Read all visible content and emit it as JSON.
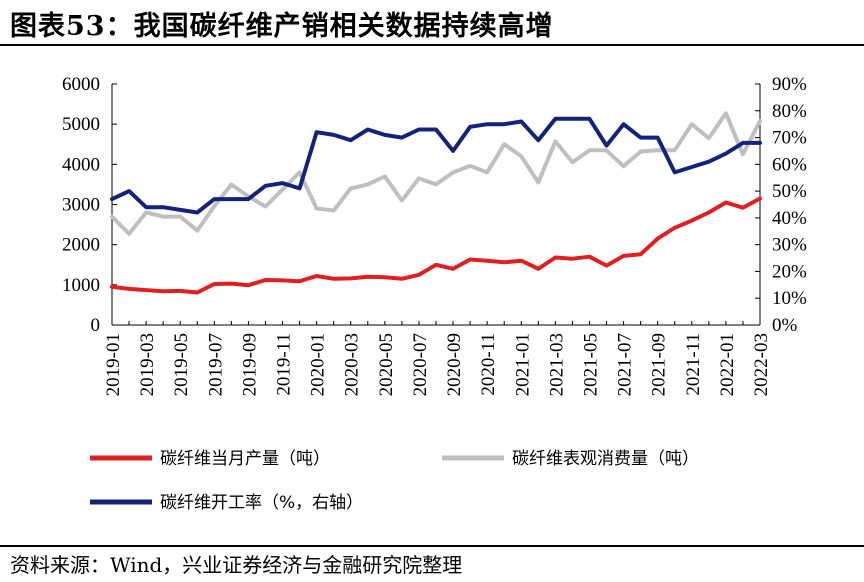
{
  "title": "图表53：我国碳纤维产销相关数据持续高增",
  "source": "资料来源：Wind，兴业证券经济与金融研究院整理",
  "chart_data": {
    "type": "line",
    "x": [
      "2019-01",
      "2019-02",
      "2019-03",
      "2019-04",
      "2019-05",
      "2019-06",
      "2019-07",
      "2019-08",
      "2019-09",
      "2019-10",
      "2019-11",
      "2019-12",
      "2020-01",
      "2020-02",
      "2020-03",
      "2020-04",
      "2020-05",
      "2020-06",
      "2020-07",
      "2020-08",
      "2020-09",
      "2020-10",
      "2020-11",
      "2020-12",
      "2021-01",
      "2021-02",
      "2021-03",
      "2021-04",
      "2021-05",
      "2021-06",
      "2021-07",
      "2021-08",
      "2021-09",
      "2021-10",
      "2021-11",
      "2021-12",
      "2022-01",
      "2022-02",
      "2022-03"
    ],
    "x_tick_labels": [
      "2019-01",
      "2019-03",
      "2019-05",
      "2019-07",
      "2019-09",
      "2019-11",
      "2020-01",
      "2020-03",
      "2020-05",
      "2020-07",
      "2020-09",
      "2020-11",
      "2021-01",
      "2021-03",
      "2021-05",
      "2021-07",
      "2021-09",
      "2021-11",
      "2022-01",
      "2022-03"
    ],
    "y_left": {
      "ylim": [
        0,
        6000
      ],
      "ticks": [
        "0",
        "1000",
        "2000",
        "3000",
        "4000",
        "5000",
        "6000"
      ]
    },
    "y_right": {
      "ylim": [
        0,
        90
      ],
      "ticks": [
        "0%",
        "10%",
        "20%",
        "30%",
        "40%",
        "50%",
        "60%",
        "70%",
        "80%",
        "90%"
      ]
    },
    "series": [
      {
        "name": "碳纤维当月产量（吨）",
        "axis": "left",
        "color": "#e02020",
        "values": [
          950,
          900,
          870,
          840,
          850,
          810,
          1020,
          1030,
          990,
          1120,
          1110,
          1090,
          1220,
          1150,
          1160,
          1200,
          1190,
          1150,
          1250,
          1500,
          1400,
          1630,
          1600,
          1560,
          1600,
          1400,
          1680,
          1650,
          1700,
          1480,
          1720,
          1760,
          2150,
          2420,
          2600,
          2800,
          3050,
          2920,
          3150
        ]
      },
      {
        "name": "碳纤维表观消费量（吨）",
        "axis": "left",
        "color": "#bfbfbf",
        "values": [
          2700,
          2270,
          2800,
          2700,
          2700,
          2350,
          2960,
          3500,
          3200,
          2950,
          3370,
          3800,
          2900,
          2850,
          3400,
          3500,
          3700,
          3100,
          3650,
          3500,
          3800,
          3960,
          3800,
          4500,
          4200,
          3550,
          4570,
          4050,
          4350,
          4350,
          3950,
          4320,
          4350,
          4350,
          5000,
          4650,
          5270,
          4250,
          5080
        ]
      },
      {
        "name": "碳纤维开工率（%，右轴）",
        "axis": "right",
        "color": "#14237a",
        "values": [
          47,
          50,
          44,
          44,
          43,
          42,
          47,
          47,
          47,
          52,
          53,
          51,
          72,
          71,
          69,
          73,
          71,
          70,
          73,
          73,
          65,
          74,
          75,
          75,
          76,
          69,
          77,
          77,
          77,
          67,
          75,
          70,
          70,
          57,
          59,
          61,
          64,
          68,
          68
        ]
      }
    ],
    "legend_position": "bottom",
    "grid": false
  }
}
